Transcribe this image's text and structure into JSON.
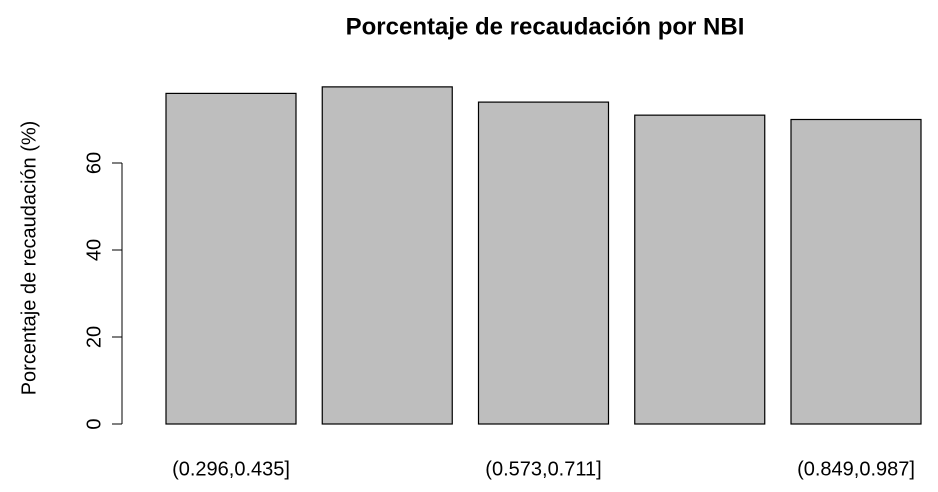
{
  "chart_data": {
    "type": "bar",
    "title": "Porcentaje de recaudación por NBI",
    "y_label": "Porcentaje de recaudación (%)",
    "categories": [
      "(0.296,0.435]",
      null,
      "(0.573,0.711]",
      null,
      "(0.849,0.987]"
    ],
    "values": [
      76,
      77.5,
      74,
      71,
      70
    ],
    "color": "#bebebe",
    "ylim": [
      0,
      80
    ],
    "yticks": [
      0,
      20,
      40,
      60
    ]
  }
}
